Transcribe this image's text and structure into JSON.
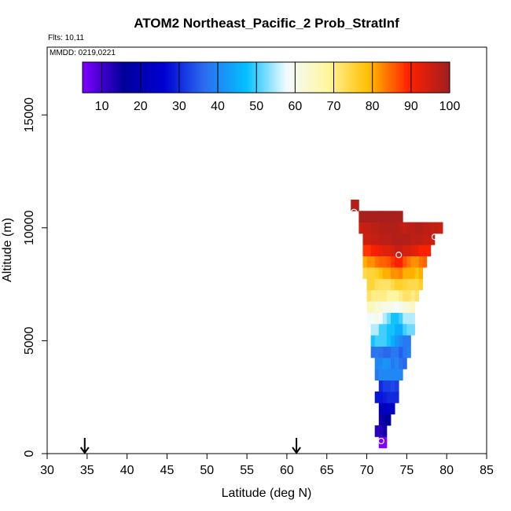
{
  "chart_data": {
    "type": "heatmap",
    "title": "ATOM2 Northeast_Pacific_2 Prob_StratInf",
    "flights_note": "Flts: 10,11",
    "dates_note": "MMDD: 0219,0221",
    "xlabel": "Latitude (deg N)",
    "ylabel": "Altitude (m)",
    "xlim": [
      30,
      85
    ],
    "ylim": [
      0,
      18000
    ],
    "x_ticks": [
      "30",
      "35",
      "40",
      "45",
      "50",
      "55",
      "60",
      "65",
      "70",
      "75",
      "80",
      "85"
    ],
    "y_ticks": [
      "0",
      "5000",
      "10000",
      "15000"
    ],
    "colorbar": {
      "ticks": [
        "10",
        "20",
        "30",
        "40",
        "50",
        "60",
        "70",
        "80",
        "90",
        "100"
      ],
      "range": [
        5,
        100
      ],
      "colors": [
        "#7e00ff",
        "#00009a",
        "#0000d2",
        "#2d6ff0",
        "#00bfff",
        "#f3fbff",
        "#fff6a0",
        "#ffc000",
        "#ff2000",
        "#a01f1f"
      ]
    },
    "arrows_latitude": [
      34.7,
      61.2
    ],
    "cell_height_m": 500,
    "cells": [
      {
        "alt": 500,
        "lat": [
          71.5,
          72.0
        ],
        "values": [
          5,
          5
        ]
      },
      {
        "alt": 1000,
        "lat": [
          71.0,
          72.0
        ],
        "values": [
          12,
          12,
          14
        ]
      },
      {
        "alt": 1500,
        "lat": [
          71.5,
          72.5
        ],
        "values": [
          14,
          16,
          16
        ]
      },
      {
        "alt": 2000,
        "lat": [
          71.5,
          73.0
        ],
        "values": [
          22,
          22,
          24,
          24
        ]
      },
      {
        "alt": 2500,
        "lat": [
          71.0,
          73.5
        ],
        "values": [
          28,
          28,
          29,
          30,
          30,
          30
        ]
      },
      {
        "alt": 3000,
        "lat": [
          71.5,
          73.5
        ],
        "values": [
          30,
          32,
          32,
          33,
          32
        ]
      },
      {
        "alt": 3500,
        "lat": [
          71.0,
          74.0
        ],
        "values": [
          38,
          40,
          40,
          40,
          40,
          40,
          40
        ]
      },
      {
        "alt": 4000,
        "lat": [
          71.0,
          74.5
        ],
        "values": [
          40,
          40,
          42,
          41,
          38,
          40,
          37,
          36
        ]
      },
      {
        "alt": 4500,
        "lat": [
          70.5,
          75.0
        ],
        "values": [
          37,
          38,
          37,
          36,
          36,
          38,
          38,
          35,
          38,
          39
        ]
      },
      {
        "alt": 5000,
        "lat": [
          70.5,
          75.0
        ],
        "values": [
          48,
          50,
          50,
          50,
          48,
          45,
          42,
          40,
          38,
          38
        ]
      },
      {
        "alt": 5500,
        "lat": [
          70.5,
          75.5
        ],
        "values": [
          55,
          55,
          50,
          50,
          48,
          48,
          45,
          45,
          50,
          52,
          52
        ]
      },
      {
        "alt": 6000,
        "lat": [
          70.0,
          75.5
        ],
        "values": [
          58,
          58,
          60,
          58,
          55,
          52,
          48,
          48,
          50,
          55,
          55,
          55
        ]
      },
      {
        "alt": 6500,
        "lat": [
          70.0,
          75.5
        ],
        "values": [
          65,
          65,
          62,
          62,
          60,
          60,
          60,
          58,
          60,
          62,
          62,
          65
        ]
      },
      {
        "alt": 7000,
        "lat": [
          70.0,
          76.0
        ],
        "values": [
          72,
          70,
          70,
          70,
          70,
          68,
          68,
          68,
          70,
          72,
          72,
          70,
          72
        ]
      },
      {
        "alt": 7500,
        "lat": [
          70.0,
          76.5
        ],
        "values": [
          75,
          75,
          73,
          72,
          72,
          72,
          74,
          76,
          76,
          75,
          74,
          74,
          74,
          76
        ]
      },
      {
        "alt": 8000,
        "lat": [
          69.5,
          76.5
        ],
        "values": [
          74,
          75,
          75,
          76,
          78,
          80,
          80,
          82,
          82,
          83,
          80,
          80,
          80,
          78,
          80
        ]
      },
      {
        "alt": 8500,
        "lat": [
          69.5,
          77.0
        ],
        "values": [
          80,
          82,
          82,
          84,
          85,
          85,
          86,
          88,
          90,
          90,
          86,
          84,
          82,
          82,
          84,
          85
        ]
      },
      {
        "alt": 9000,
        "lat": [
          69.5,
          77.5
        ],
        "values": [
          88,
          88,
          90,
          91,
          92,
          93,
          93,
          94,
          96,
          96,
          94,
          94,
          93,
          92,
          90,
          90,
          90
        ]
      },
      {
        "alt": 9500,
        "lat": [
          69.5,
          78.0
        ],
        "values": [
          95,
          95,
          96,
          96,
          97,
          97,
          97,
          98,
          98,
          98,
          98,
          98,
          97,
          97,
          97,
          96,
          96,
          95
        ]
      },
      {
        "alt": 10000,
        "lat": [
          69.0,
          79.0
        ],
        "values": [
          95,
          96,
          96,
          97,
          97,
          98,
          98,
          98,
          98,
          98,
          97,
          96,
          97,
          97,
          98,
          98,
          97,
          97,
          96,
          96,
          95
        ]
      },
      {
        "alt": 10500,
        "lat": [
          69.0,
          74.0
        ],
        "values": [
          99,
          99,
          99,
          99,
          99,
          99,
          99,
          99,
          99,
          99,
          99
        ]
      },
      {
        "alt": 11000,
        "lat": [
          68.0,
          68.5
        ],
        "values": [
          98,
          98
        ]
      }
    ],
    "markers": [
      {
        "lat": 68.4,
        "alt": 10700
      },
      {
        "lat": 78.5,
        "alt": 9600
      },
      {
        "lat": 74.0,
        "alt": 8800
      },
      {
        "lat": 71.8,
        "alt": 560
      }
    ]
  }
}
